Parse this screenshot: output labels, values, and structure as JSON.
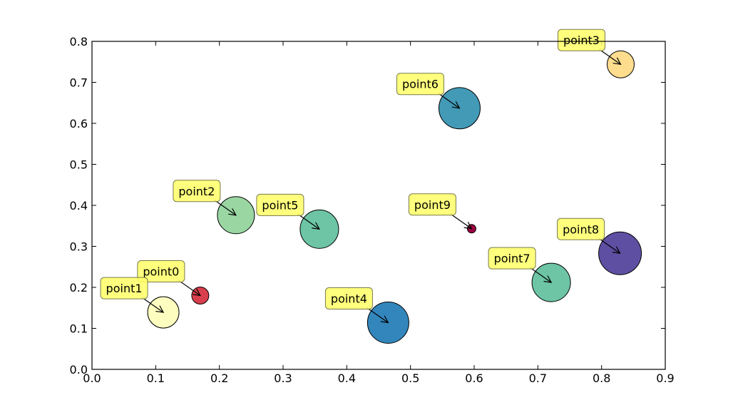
{
  "chart_data": {
    "type": "scatter",
    "title": "",
    "xlabel": "",
    "ylabel": "",
    "xlim": [
      0.0,
      0.9
    ],
    "ylim": [
      0.0,
      0.8
    ],
    "xticks": [
      "0.0",
      "0.1",
      "0.2",
      "0.3",
      "0.4",
      "0.5",
      "0.6",
      "0.7",
      "0.8",
      "0.9"
    ],
    "yticks": [
      "0.0",
      "0.1",
      "0.2",
      "0.3",
      "0.4",
      "0.5",
      "0.6",
      "0.7",
      "0.8"
    ],
    "grid": false,
    "annotation_style": {
      "box_color": "#ffff66",
      "arrow_color": "#000000"
    },
    "points": [
      {
        "label": "point0",
        "x": 0.17,
        "y": 0.18,
        "size": 12,
        "color": "#d93e4c"
      },
      {
        "label": "point1",
        "x": 0.112,
        "y": 0.139,
        "size": 22,
        "color": "#fdfdbf"
      },
      {
        "label": "point2",
        "x": 0.226,
        "y": 0.376,
        "size": 26,
        "color": "#9ad6a2"
      },
      {
        "label": "point3",
        "x": 0.83,
        "y": 0.744,
        "size": 19,
        "color": "#fedd8e"
      },
      {
        "label": "point4",
        "x": 0.465,
        "y": 0.114,
        "size": 29,
        "color": "#3286bc"
      },
      {
        "label": "point5",
        "x": 0.357,
        "y": 0.342,
        "size": 27,
        "color": "#6dc5a5"
      },
      {
        "label": "point6",
        "x": 0.577,
        "y": 0.637,
        "size": 29,
        "color": "#429ab7"
      },
      {
        "label": "point7",
        "x": 0.721,
        "y": 0.212,
        "size": 27,
        "color": "#6dc5a5"
      },
      {
        "label": "point8",
        "x": 0.829,
        "y": 0.283,
        "size": 30,
        "color": "#5e4fa2"
      },
      {
        "label": "point9",
        "x": 0.596,
        "y": 0.343,
        "size": 6,
        "color": "#9e0142"
      }
    ]
  }
}
